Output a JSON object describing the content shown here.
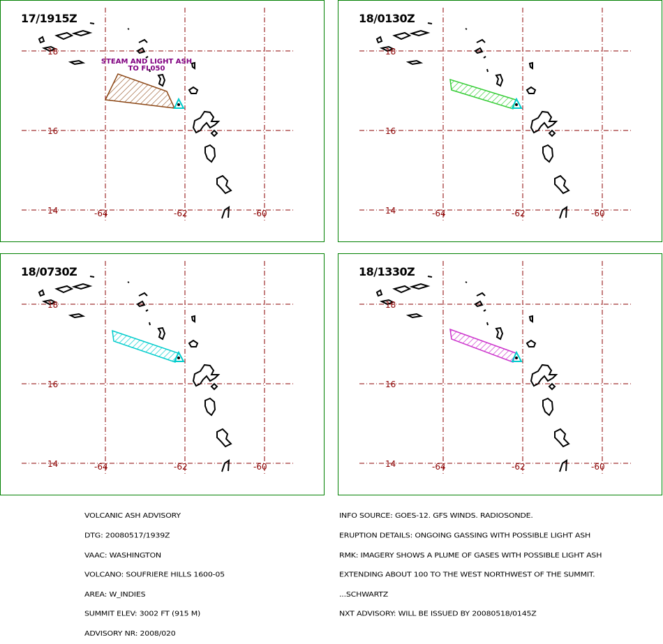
{
  "panels": [
    {
      "time": "17/1915Z",
      "plume_color": "#8b4513",
      "annotation_line1": "STEAM AND LIGHT ASH",
      "annotation_line2": "TO FL050"
    },
    {
      "time": "18/0130Z",
      "plume_color": "#33cc33"
    },
    {
      "time": "18/0730Z",
      "plume_color": "#00cccc"
    },
    {
      "time": "18/1330Z",
      "plume_color": "#cc33cc"
    }
  ],
  "grid": {
    "latitudes": [
      "18",
      "16",
      "14"
    ],
    "longitudes": [
      "-64",
      "-62",
      "-60"
    ],
    "color": "#8b0000"
  },
  "volcano_marker_color": "#00cccc",
  "advisory_left": {
    "line1": "VOLCANIC ASH ADVISORY",
    "line2": "DTG: 20080517/1939Z",
    "line3": "VAAC: WASHINGTON",
    "line4": "VOLCANO: SOUFRIERE HILLS 1600-05",
    "line5": "AREA: W_INDIES",
    "line6": "SUMMIT ELEV: 3002 FT (915 M)",
    "line7": "ADVISORY NR: 2008/020"
  },
  "advisory_right": {
    "line1": "INFO SOURCE: GOES-12. GFS WINDS. RADIOSONDE.",
    "line2": "ERUPTION DETAILS: ONGOING GASSING WITH POSSIBLE LIGHT ASH",
    "line3": "RMK: IMAGERY SHOWS A PLUME OF GASES WITH POSSIBLE LIGHT ASH",
    "line4": "EXTENDING ABOUT 100 TO THE WEST NORTHWEST OF THE SUMMIT.",
    "line5": "...SCHWARTZ",
    "line6": "NXT ADVISORY: WILL BE ISSUED BY 20080518/0145Z"
  }
}
